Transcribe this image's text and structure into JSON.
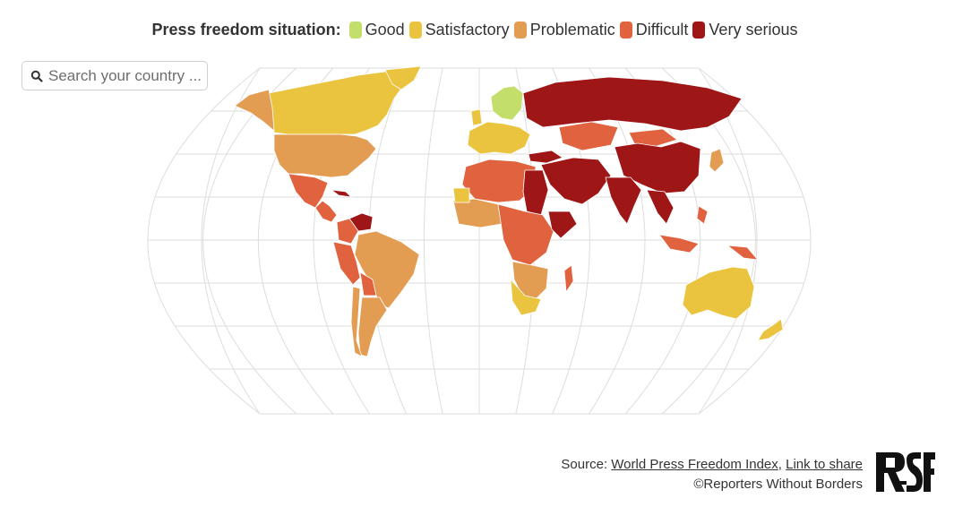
{
  "legend": {
    "title": "Press freedom situation:",
    "items": [
      {
        "label": "Good",
        "color": "#c3de6b"
      },
      {
        "label": "Satisfactory",
        "color": "#ebc43f"
      },
      {
        "label": "Problematic",
        "color": "#e39d53"
      },
      {
        "label": "Difficult",
        "color": "#e0623e"
      },
      {
        "label": "Very serious",
        "color": "#9e1616"
      }
    ]
  },
  "search": {
    "placeholder": "Search your country ...",
    "icon": "search-icon"
  },
  "map": {
    "projection": "Robinson",
    "graticule": true,
    "border_color": "#ffffff",
    "graticule_color": "#dddddd"
  },
  "footer": {
    "source_prefix": "Source: ",
    "source_link": "World Press Freedom Index",
    "separator": ", ",
    "share_link": "Link to share",
    "copyright": "©Reporters Without Borders"
  },
  "logo": {
    "text": "RSF"
  }
}
